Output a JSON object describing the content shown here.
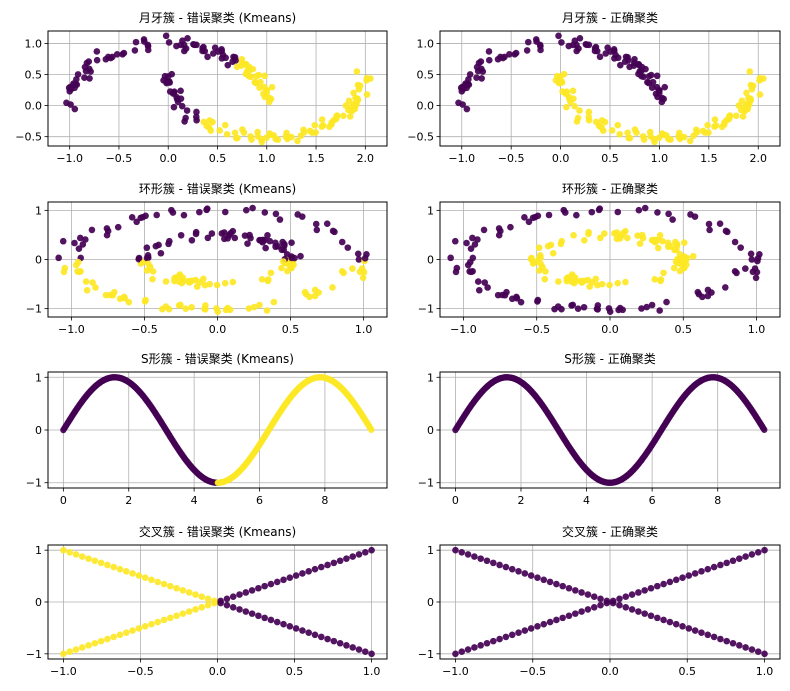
{
  "figure": {
    "colors": {
      "cluster_0": "#440154",
      "cluster_1": "#fde725"
    },
    "grid": true
  },
  "chart_data": [
    {
      "id": "moons-wrong",
      "type": "scatter",
      "title": "月牙簇 - 错误聚类 (Kmeans)",
      "dataset": "moons",
      "labeling": "kmeans",
      "xlim": [
        -1.22,
        2.22
      ],
      "ylim": [
        -0.65,
        1.2
      ],
      "xticks": [
        -1.0,
        -0.5,
        0.0,
        0.5,
        1.0,
        1.5,
        2.0
      ],
      "xticklabels": [
        "−1.0",
        "−0.5",
        "0.0",
        "0.5",
        "1.0",
        "1.5",
        "2.0"
      ],
      "yticks": [
        -0.5,
        0.0,
        0.5,
        1.0
      ],
      "yticklabels": [
        "−0.5",
        "0.0",
        "0.5",
        "1.0"
      ],
      "n_points": 200,
      "noise": 0.05,
      "kmeans_boundary": "points with x > 0.72 - 0.9*(y-0.25) in yellow cluster (approx. split along line from (0.7,0.8) to (0.3,-0.3))"
    },
    {
      "id": "moons-correct",
      "type": "scatter",
      "title": "月牙簇 - 正确聚类",
      "dataset": "moons",
      "labeling": "true",
      "xlim": [
        -1.22,
        2.22
      ],
      "ylim": [
        -0.65,
        1.2
      ],
      "xticks": [
        -1.0,
        -0.5,
        0.0,
        0.5,
        1.0,
        1.5,
        2.0
      ],
      "xticklabels": [
        "−1.0",
        "−0.5",
        "0.0",
        "0.5",
        "1.0",
        "1.5",
        "2.0"
      ],
      "yticks": [
        -0.5,
        0.0,
        0.5,
        1.0
      ],
      "yticklabels": [
        "−0.5",
        "0.0",
        "0.5",
        "1.0"
      ],
      "n_points": 200,
      "noise": 0.05
    },
    {
      "id": "circles-wrong",
      "type": "scatter",
      "title": "环形簇 - 错误聚类 (Kmeans)",
      "dataset": "circles",
      "labeling": "kmeans",
      "xlim": [
        -1.16,
        1.16
      ],
      "ylim": [
        -1.17,
        1.17
      ],
      "xticks": [
        -1.0,
        -0.5,
        0.0,
        0.5,
        1.0
      ],
      "xticklabels": [
        "−1.0",
        "−0.5",
        "0.0",
        "0.5",
        "1.0"
      ],
      "yticks": [
        -1,
        0,
        1
      ],
      "yticklabels": [
        "−1",
        "0",
        "1"
      ],
      "n_points": 200,
      "noise": 0.05,
      "factor": 0.5,
      "kmeans_boundary": "split at y = 0 (upper half purple, lower half yellow)"
    },
    {
      "id": "circles-correct",
      "type": "scatter",
      "title": "环形簇 - 正确聚类",
      "dataset": "circles",
      "labeling": "true",
      "xlim": [
        -1.16,
        1.16
      ],
      "ylim": [
        -1.17,
        1.17
      ],
      "xticks": [
        -1.0,
        -0.5,
        0.0,
        0.5,
        1.0
      ],
      "xticklabels": [
        "−1.0",
        "−0.5",
        "0.0",
        "0.5",
        "1.0"
      ],
      "yticks": [
        -1,
        0,
        1
      ],
      "yticklabels": [
        "−1",
        "0",
        "1"
      ],
      "n_points": 200,
      "noise": 0.05,
      "factor": 0.5,
      "clusters": {
        "outer_ring_radius": 1.0,
        "inner_ring_radius": 0.5
      }
    },
    {
      "id": "sine-wrong",
      "type": "scatter",
      "title": "S形簇 - 错误聚类 (Kmeans)",
      "dataset": "sine",
      "labeling": "kmeans",
      "xlim": [
        -0.47,
        9.9
      ],
      "ylim": [
        -1.1,
        1.1
      ],
      "xticks": [
        0,
        2,
        4,
        6,
        8
      ],
      "xticklabels": [
        "0",
        "2",
        "4",
        "6",
        "8"
      ],
      "yticks": [
        -1,
        0,
        1
      ],
      "yticklabels": [
        "−1",
        "0",
        "1"
      ],
      "x_range": [
        0,
        9.42
      ],
      "function": "y = sin(x)",
      "n_points": 300,
      "kmeans_boundary": "x < 4.71 purple, x >= 4.71 yellow"
    },
    {
      "id": "sine-correct",
      "type": "scatter",
      "title": "S形簇 - 正确聚类",
      "dataset": "sine",
      "labeling": "true",
      "xlim": [
        -0.47,
        9.9
      ],
      "ylim": [
        -1.1,
        1.1
      ],
      "xticks": [
        0,
        2,
        4,
        6,
        8
      ],
      "xticklabels": [
        "0",
        "2",
        "4",
        "6",
        "8"
      ],
      "yticks": [
        -1,
        0,
        1
      ],
      "yticklabels": [
        "−1",
        "0",
        "1"
      ],
      "x_range": [
        0,
        9.42
      ],
      "function": "y = sin(x)",
      "n_points": 300
    },
    {
      "id": "cross-wrong",
      "type": "scatter",
      "title": "交叉簇 - 错误聚类 (Kmeans)",
      "dataset": "cross",
      "labeling": "kmeans",
      "xlim": [
        -1.1,
        1.1
      ],
      "ylim": [
        -1.1,
        1.1
      ],
      "xticks": [
        -1.0,
        -0.5,
        0.0,
        0.5,
        1.0
      ],
      "xticklabels": [
        "−1.0",
        "−0.5",
        "0.0",
        "0.5",
        "1.0"
      ],
      "yticks": [
        -1,
        0,
        1
      ],
      "yticklabels": [
        "−1",
        "0",
        "1"
      ],
      "lines": [
        "y = x",
        "y = -x"
      ],
      "x_range": [
        -1,
        1
      ],
      "points_per_line": 50,
      "kmeans_boundary": "x < 0 yellow, x >= 0 purple"
    },
    {
      "id": "cross-correct",
      "type": "scatter",
      "title": "交叉簇 - 正确聚类",
      "dataset": "cross",
      "labeling": "true",
      "xlim": [
        -1.1,
        1.1
      ],
      "ylim": [
        -1.1,
        1.1
      ],
      "xticks": [
        -1.0,
        -0.5,
        0.0,
        0.5,
        1.0
      ],
      "xticklabels": [
        "−1.0",
        "−0.5",
        "0.0",
        "0.5",
        "1.0"
      ],
      "yticks": [
        -1,
        0,
        1
      ],
      "yticklabels": [
        "−1",
        "0",
        "1"
      ],
      "lines": [
        "y = x",
        "y = -x"
      ],
      "x_range": [
        -1,
        1
      ],
      "points_per_line": 50,
      "note": "all points in single cluster color"
    }
  ]
}
